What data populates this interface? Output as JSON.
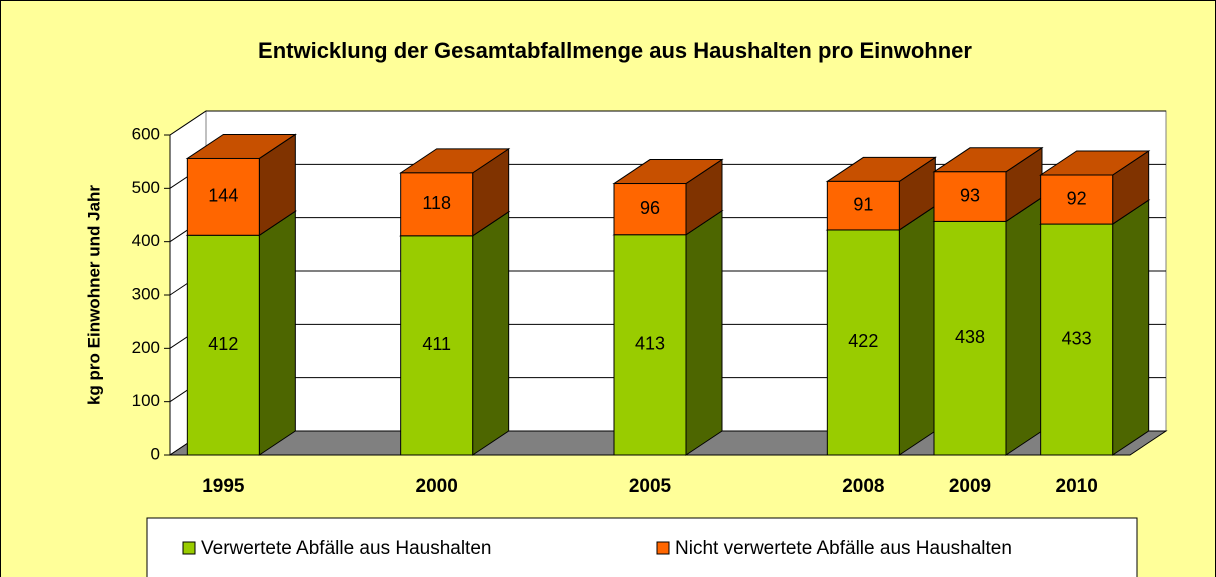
{
  "chart_data": {
    "type": "bar",
    "stacked": true,
    "three_d": true,
    "title": "Entwicklung der Gesamtabfallmenge aus Haushalten pro Einwohner",
    "y_label": "kg pro Einwohner und Jahr",
    "categories": [
      "1995",
      null,
      "2000",
      null,
      "2005",
      null,
      "2008",
      "2009",
      "2010"
    ],
    "series": [
      {
        "name": "Verwertete Abfälle aus Haushalten",
        "color": "#99cc00",
        "values": [
          412,
          null,
          411,
          null,
          413,
          null,
          422,
          438,
          433
        ]
      },
      {
        "name": "Nicht verwertete Abfälle aus Haushalten",
        "color": "#ff6600",
        "values": [
          144,
          null,
          118,
          null,
          96,
          null,
          91,
          93,
          92
        ]
      }
    ],
    "ylim": [
      0,
      600
    ],
    "yticks": [
      0,
      100,
      200,
      300,
      400,
      500,
      600
    ],
    "grid": true
  }
}
